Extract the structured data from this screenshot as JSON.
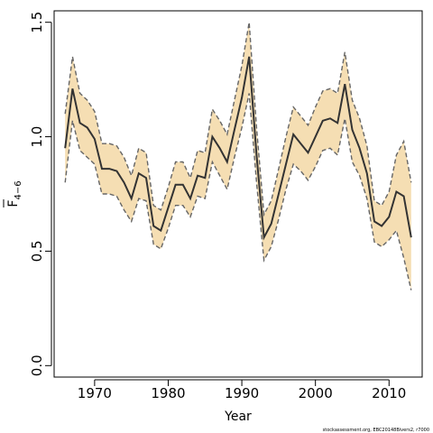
{
  "chart_data": {
    "type": "line",
    "xlabel": "Year",
    "ylabel": {
      "main": "F",
      "subscript": "4−6"
    },
    "xlim": [
      1964.5,
      2014.5
    ],
    "ylim": [
      -0.05,
      1.55
    ],
    "x_ticks": [
      1970,
      1980,
      1990,
      2000,
      2010
    ],
    "y_ticks": [
      0.0,
      0.5,
      1.0,
      1.5
    ],
    "y_tick_labels": [
      "0.0",
      "0.5",
      "1.0",
      "1.5"
    ],
    "grid": false,
    "band_color": "#F5DEB3",
    "band_line_color": "#666666",
    "line_color": "#333333",
    "x": [
      1966,
      1967,
      1968,
      1969,
      1970,
      1971,
      1972,
      1973,
      1974,
      1975,
      1976,
      1977,
      1978,
      1979,
      1980,
      1981,
      1982,
      1983,
      1984,
      1985,
      1986,
      1987,
      1988,
      1989,
      1990,
      1991,
      1992,
      1993,
      1994,
      1995,
      1996,
      1997,
      1998,
      1999,
      2000,
      2001,
      2002,
      2003,
      2004,
      2005,
      2006,
      2007,
      2008,
      2009,
      2010,
      2011,
      2012,
      2013
    ],
    "series": [
      {
        "values": [
          0.95,
          1.21,
          1.06,
          1.04,
          0.99,
          0.86,
          0.86,
          0.85,
          0.8,
          0.73,
          0.84,
          0.82,
          0.61,
          0.59,
          0.69,
          0.79,
          0.79,
          0.73,
          0.83,
          0.82,
          1.0,
          0.95,
          0.89,
          1.03,
          1.17,
          1.35,
          0.92,
          0.56,
          0.62,
          0.75,
          0.88,
          1.01,
          0.97,
          0.93,
          1.0,
          1.07,
          1.08,
          1.06,
          1.23,
          1.03,
          0.95,
          0.84,
          0.63,
          0.61,
          0.65,
          0.76,
          0.74,
          0.56
        ]
      }
    ],
    "lower": [
      0.8,
      1.07,
      0.94,
      0.91,
      0.88,
      0.75,
      0.75,
      0.74,
      0.68,
      0.63,
      0.73,
      0.72,
      0.53,
      0.51,
      0.6,
      0.7,
      0.7,
      0.65,
      0.74,
      0.73,
      0.89,
      0.83,
      0.77,
      0.91,
      1.04,
      1.19,
      0.8,
      0.46,
      0.52,
      0.64,
      0.77,
      0.88,
      0.85,
      0.81,
      0.87,
      0.94,
      0.95,
      0.92,
      1.08,
      0.89,
      0.83,
      0.73,
      0.54,
      0.52,
      0.55,
      0.59,
      0.47,
      0.33
    ],
    "upper": [
      1.1,
      1.35,
      1.19,
      1.16,
      1.11,
      0.97,
      0.97,
      0.96,
      0.91,
      0.83,
      0.95,
      0.93,
      0.7,
      0.68,
      0.78,
      0.89,
      0.89,
      0.82,
      0.94,
      0.93,
      1.12,
      1.07,
      1.01,
      1.16,
      1.31,
      1.5,
      1.04,
      0.66,
      0.72,
      0.86,
      1.0,
      1.13,
      1.09,
      1.05,
      1.13,
      1.2,
      1.21,
      1.19,
      1.37,
      1.16,
      1.08,
      0.96,
      0.72,
      0.7,
      0.76,
      0.92,
      0.98,
      0.8
    ]
  },
  "footnote": "stockassessment.org, EBC20148Bivers2, r7000"
}
